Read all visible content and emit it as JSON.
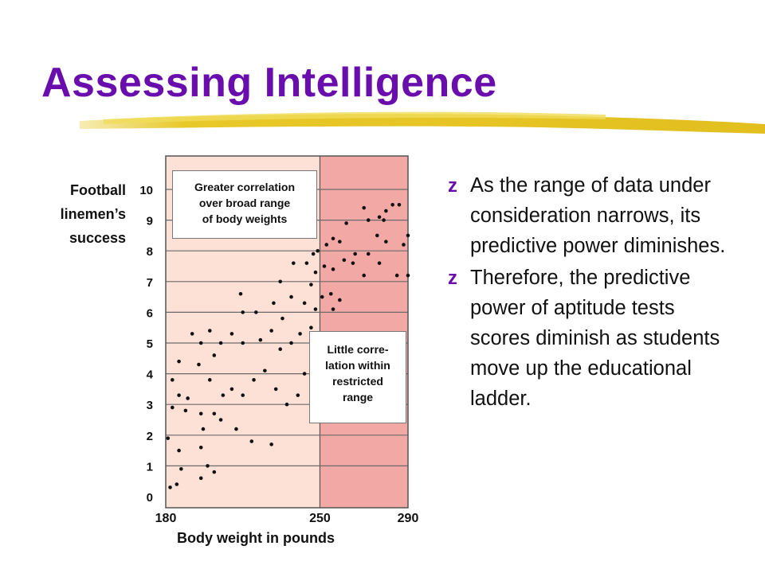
{
  "slide": {
    "title": "Assessing Intelligence",
    "accent_color": "#6a0dad",
    "underline_color": "#e8c92a"
  },
  "bullets": [
    {
      "marker": "z",
      "text": "As the range of data under consideration narrows, its predictive power diminishes."
    },
    {
      "marker": "z",
      "text": "Therefore, the predictive power of aptitude tests scores diminish as students move up the educational ladder."
    }
  ],
  "chart_data": {
    "type": "scatter",
    "ylabel": [
      "Football",
      "linemen’s",
      "success"
    ],
    "xlabel": "Body weight in pounds",
    "y_ticks": [
      "0",
      "1",
      "2",
      "3",
      "4",
      "5",
      "6",
      "7",
      "8",
      "9",
      "10"
    ],
    "x_ticks": [
      "180",
      "250",
      "290"
    ],
    "ylim": [
      0,
      10.5
    ],
    "xlim": [
      180,
      290
    ],
    "restricted_range": [
      250,
      290
    ],
    "colors": {
      "broad_range": "#fde0d6",
      "restricted_range": "#f2a9a6",
      "border": "#555555",
      "points": "#111111"
    },
    "annotations": [
      {
        "label": "Greater correlation over broad range of body weights",
        "lines": [
          "Greater correlation",
          "over broad range",
          "of body weights"
        ]
      },
      {
        "label": "Little correlation within restricted range",
        "lines": [
          "Little corre-",
          "lation within",
          "restricted",
          "range"
        ]
      }
    ],
    "points": [
      [
        182,
        0.3
      ],
      [
        185,
        0.4
      ],
      [
        187,
        0.9
      ],
      [
        181,
        1.9
      ],
      [
        186,
        1.5
      ],
      [
        196,
        1.6
      ],
      [
        199,
        1.0
      ],
      [
        202,
        0.8
      ],
      [
        196,
        0.6
      ],
      [
        183,
        2.9
      ],
      [
        189,
        2.8
      ],
      [
        196,
        2.7
      ],
      [
        202,
        2.7
      ],
      [
        205,
        2.5
      ],
      [
        212,
        2.2
      ],
      [
        219,
        1.8
      ],
      [
        228,
        1.7
      ],
      [
        197,
        2.2
      ],
      [
        183,
        3.8
      ],
      [
        186,
        3.3
      ],
      [
        190,
        3.2
      ],
      [
        195,
        4.3
      ],
      [
        200,
        3.8
      ],
      [
        206,
        3.3
      ],
      [
        210,
        3.5
      ],
      [
        215,
        3.3
      ],
      [
        220,
        3.8
      ],
      [
        225,
        4.1
      ],
      [
        230,
        3.5
      ],
      [
        235,
        3.0
      ],
      [
        240,
        3.3
      ],
      [
        243,
        4.0
      ],
      [
        186,
        4.4
      ],
      [
        192,
        5.3
      ],
      [
        196,
        5.0
      ],
      [
        200,
        5.4
      ],
      [
        202,
        4.6
      ],
      [
        205,
        5.0
      ],
      [
        210,
        5.3
      ],
      [
        215,
        5.0
      ],
      [
        223,
        5.1
      ],
      [
        228,
        5.4
      ],
      [
        232,
        4.8
      ],
      [
        237,
        5.0
      ],
      [
        241,
        5.3
      ],
      [
        246,
        5.5
      ],
      [
        215,
        6.0
      ],
      [
        221,
        6.0
      ],
      [
        229,
        6.3
      ],
      [
        233,
        5.8
      ],
      [
        237,
        6.5
      ],
      [
        243,
        6.3
      ],
      [
        246,
        6.9
      ],
      [
        248,
        6.1
      ],
      [
        251,
        6.5
      ],
      [
        255,
        6.6
      ],
      [
        256,
        6.1
      ],
      [
        259,
        6.4
      ],
      [
        214,
        6.6
      ],
      [
        232,
        7.0
      ],
      [
        238,
        7.6
      ],
      [
        244,
        7.6
      ],
      [
        248,
        7.3
      ],
      [
        249,
        8.0
      ],
      [
        252,
        7.5
      ],
      [
        256,
        7.4
      ],
      [
        261,
        7.7
      ],
      [
        265,
        7.6
      ],
      [
        270,
        7.2
      ],
      [
        272,
        7.9
      ],
      [
        276,
        8.5
      ],
      [
        280,
        8.3
      ],
      [
        285,
        7.2
      ],
      [
        290,
        7.2
      ],
      [
        247,
        7.9
      ],
      [
        253,
        8.2
      ],
      [
        256,
        8.4
      ],
      [
        259,
        8.3
      ],
      [
        266,
        7.9
      ],
      [
        277,
        7.6
      ],
      [
        279,
        9.0
      ],
      [
        283,
        9.5
      ],
      [
        286,
        9.5
      ],
      [
        288,
        8.2
      ],
      [
        262,
        8.9
      ],
      [
        270,
        9.4
      ],
      [
        272,
        9.0
      ],
      [
        277,
        9.1
      ],
      [
        280,
        9.3
      ],
      [
        290,
        8.5
      ]
    ]
  }
}
